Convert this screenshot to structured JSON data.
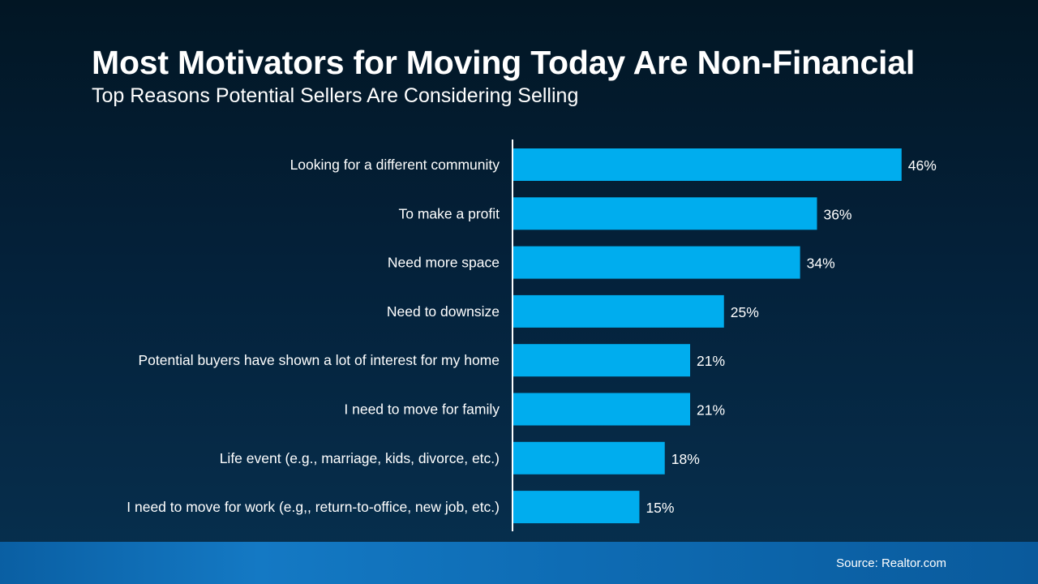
{
  "header": {
    "title": "Most Motivators for Moving Today Are Non-Financial",
    "subtitle": "Top Reasons Potential Sellers Are Considering Selling"
  },
  "footer": {
    "source": "Source: Realtor.com"
  },
  "colors": {
    "bar": "#00adee",
    "axis": "#ffffff",
    "text": "#ffffff"
  },
  "chart_data": {
    "type": "bar",
    "orientation": "horizontal",
    "title": "Most Motivators for Moving Today Are Non-Financial",
    "subtitle": "Top Reasons Potential Sellers Are Considering Selling",
    "categories": [
      "Looking for a different community",
      "To make a profit",
      "Need more space",
      "Need to downsize",
      "Potential buyers have shown a lot of interest for my home",
      "I need to move for family",
      "Life event (e.g., marriage, kids, divorce, etc.)",
      "I need to move for work (e.g,, return-to-office, new job, etc.)"
    ],
    "values": [
      46,
      36,
      34,
      25,
      21,
      21,
      18,
      15
    ],
    "value_labels": [
      "46%",
      "36%",
      "34%",
      "25%",
      "21%",
      "21%",
      "18%",
      "15%"
    ],
    "unit": "%",
    "xlim": [
      0,
      50
    ],
    "grid": false,
    "legend": "none"
  }
}
